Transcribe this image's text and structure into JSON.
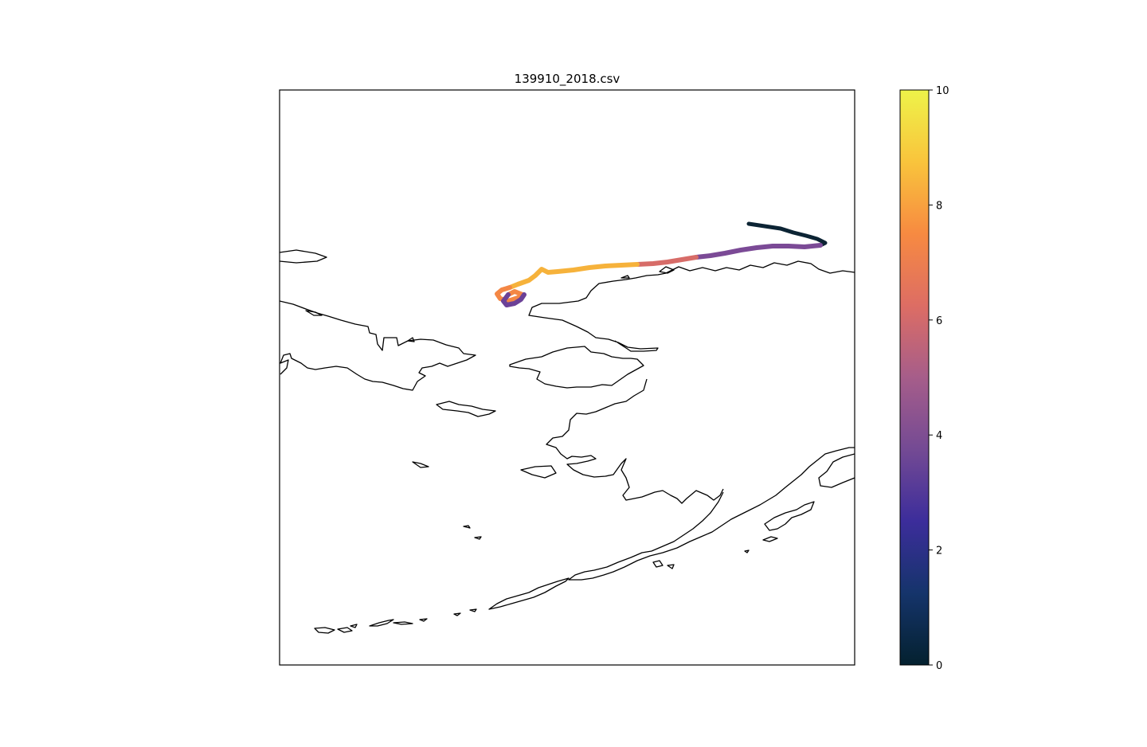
{
  "title": "139910_2018.csv",
  "map": {
    "features": [
      "coastline",
      "track"
    ],
    "projection_frame": "square map panel with coastlines and colored track"
  },
  "colorbar": {
    "min": 0,
    "max": 10,
    "ticks": [
      "0",
      "2",
      "4",
      "6",
      "8",
      "10"
    ],
    "colormap": [
      "#04212f",
      "#15346b",
      "#3c2d9b",
      "#744a94",
      "#a65d8a",
      "#dd6d64",
      "#f78a41",
      "#f9c43c",
      "#eef349"
    ]
  },
  "track_stages": [
    {
      "value": 0.1,
      "color": "#0c2434"
    },
    {
      "value": 4.3,
      "color": "#7b4a96"
    },
    {
      "value": 6.4,
      "color": "#d76c68"
    },
    {
      "value": 8.6,
      "color": "#f6b23b"
    },
    {
      "value": 7.3,
      "color": "#f48745"
    },
    {
      "value": 3.4,
      "color": "#6b4197"
    }
  ]
}
